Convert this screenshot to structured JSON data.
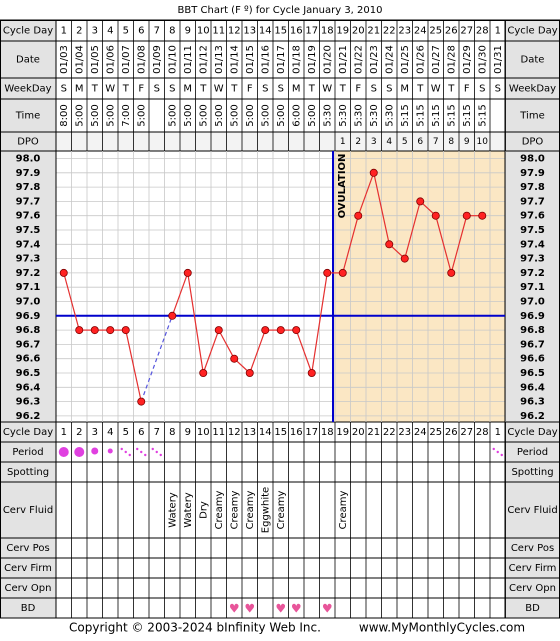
{
  "title": "BBT Chart (F º) for Cycle January 3, 2010",
  "row_labels": {
    "cycle_day": "Cycle Day",
    "date": "Date",
    "weekday": "WeekDay",
    "time": "Time",
    "dpo": "DPO",
    "period": "Period",
    "spotting": "Spotting",
    "cerv_fluid": "Cerv Fluid",
    "cerv_pos": "Cerv Pos",
    "cerv_firm": "Cerv Firm",
    "cerv_opn": "Cerv Opn",
    "bd": "BD"
  },
  "cycle_days": [
    "1",
    "2",
    "3",
    "4",
    "5",
    "6",
    "7",
    "8",
    "9",
    "10",
    "11",
    "12",
    "13",
    "14",
    "15",
    "16",
    "17",
    "18",
    "19",
    "20",
    "21",
    "22",
    "23",
    "24",
    "25",
    "26",
    "27",
    "28",
    "1"
  ],
  "dates": [
    "01/03",
    "01/04",
    "01/05",
    "01/06",
    "01/07",
    "01/08",
    "01/09",
    "01/10",
    "01/11",
    "01/12",
    "01/13",
    "01/14",
    "01/15",
    "01/16",
    "01/17",
    "01/18",
    "01/19",
    "01/20",
    "01/21",
    "01/22",
    "01/23",
    "01/24",
    "01/25",
    "01/26",
    "01/27",
    "01/28",
    "01/29",
    "01/30",
    "01/31"
  ],
  "weekdays": [
    "S",
    "M",
    "T",
    "W",
    "T",
    "F",
    "S",
    "S",
    "M",
    "T",
    "W",
    "T",
    "F",
    "S",
    "S",
    "M",
    "T",
    "W",
    "T",
    "F",
    "S",
    "S",
    "M",
    "T",
    "W",
    "T",
    "F",
    "S",
    "S"
  ],
  "times": [
    "8:00",
    "5:00",
    "5:00",
    "5:00",
    "7:00",
    "5:00",
    "",
    "5:00",
    "5:00",
    "5:00",
    "5:00",
    "5:00",
    "5:00",
    "5:00",
    "5:00",
    "6:00",
    "5:00",
    "5:30",
    "5:30",
    "5:30",
    "5:30",
    "5:30",
    "5:15",
    "5:15",
    "5:15",
    "5:15",
    "5:15",
    "5:15",
    ""
  ],
  "dpo": [
    "",
    "",
    "",
    "",
    "",
    "",
    "",
    "",
    "",
    "",
    "",
    "",
    "",
    "",
    "",
    "",
    "",
    "",
    "1",
    "2",
    "3",
    "4",
    "5",
    "6",
    "7",
    "8",
    "9",
    "10",
    ""
  ],
  "period": [
    "heavy",
    "heavy",
    "medium",
    "light",
    "spotting",
    "spotting",
    "spotting",
    "",
    "",
    "",
    "",
    "",
    "",
    "",
    "",
    "",
    "",
    "",
    "",
    "",
    "",
    "",
    "",
    "",
    "",
    "",
    "",
    "",
    "spotting"
  ],
  "cerv_fluid": [
    "",
    "",
    "",
    "",
    "",
    "",
    "",
    "Watery",
    "Watery",
    "Dry",
    "Creamy",
    "Creamy",
    "Creamy",
    "Eggwhite",
    "Creamy",
    "",
    "",
    "",
    "Creamy",
    "",
    "",
    "",
    "",
    "",
    "",
    "",
    "",
    "",
    ""
  ],
  "bd": [
    false,
    false,
    false,
    false,
    false,
    false,
    false,
    false,
    false,
    false,
    false,
    true,
    true,
    false,
    true,
    true,
    false,
    true,
    false,
    false,
    false,
    false,
    false,
    false,
    false,
    false,
    false,
    false,
    false
  ],
  "ovulation_label": "OVULATION",
  "ovulation_day_index": 17,
  "coverline": 96.9,
  "chart_data": {
    "type": "line",
    "title": "BBT Chart (F º) for Cycle January 3, 2010",
    "xlabel": "Cycle Day",
    "ylabel": "",
    "ylim": [
      96.2,
      98.0
    ],
    "y_ticks": [
      "98.0",
      "97.9",
      "97.8",
      "97.7",
      "97.6",
      "97.5",
      "97.4",
      "97.3",
      "97.2",
      "97.1",
      "97.0",
      "96.9",
      "96.8",
      "96.7",
      "96.6",
      "96.5",
      "96.4",
      "96.3",
      "96.2"
    ],
    "categories": [
      "1",
      "2",
      "3",
      "4",
      "5",
      "6",
      "7",
      "8",
      "9",
      "10",
      "11",
      "12",
      "13",
      "14",
      "15",
      "16",
      "17",
      "18",
      "19",
      "20",
      "21",
      "22",
      "23",
      "24",
      "25",
      "26",
      "27",
      "28",
      "1"
    ],
    "series": [
      {
        "values": [
          97.2,
          96.8,
          96.8,
          96.8,
          96.8,
          96.3,
          null,
          96.9,
          97.2,
          96.5,
          96.8,
          96.6,
          96.5,
          96.8,
          96.8,
          96.8,
          96.5,
          97.2,
          97.2,
          97.6,
          97.9,
          97.4,
          97.3,
          97.7,
          97.6,
          97.2,
          97.6,
          97.6,
          null
        ]
      }
    ],
    "interpolated_gap": {
      "from_index": 5,
      "to_index": 7
    },
    "coverline": 96.9,
    "ovulation_after_day_index": 17,
    "grid": true,
    "colors": {
      "line": "#e53030",
      "dot_fill": "#ff2222",
      "coverline": "#0000cc",
      "ovulation": "#0000cc",
      "luteal_bg": "#fbe7c4",
      "grid": "#c8c8c8",
      "label_bg": "#e3e3e3",
      "period": "#e040e0",
      "heart": "#e8559a"
    }
  },
  "footer": {
    "copyright": "Copyright © 2003-2024 bInfinity Web Inc.",
    "site": "www.MyMonthlyCycles.com"
  }
}
